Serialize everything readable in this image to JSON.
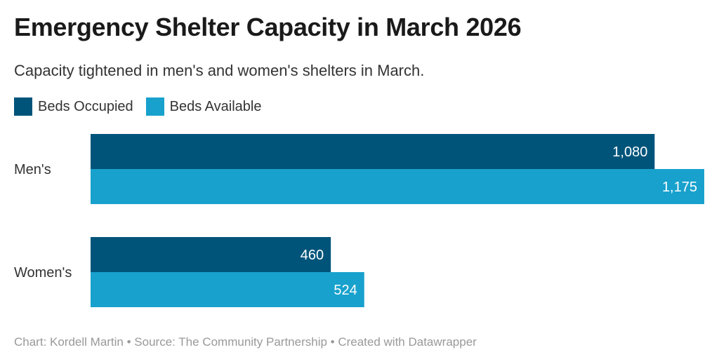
{
  "title": "Emergency Shelter Capacity in March 2026",
  "subtitle": "Capacity tightened in men's and women's shelters in March.",
  "footer": "Chart: Kordell Martin • Source: The Community Partnership • Created with Datawrapper",
  "colors": {
    "occupied": "#00547a",
    "available": "#18a1cd",
    "value_label": "#ffffff"
  },
  "chart_data": {
    "type": "bar",
    "orientation": "horizontal",
    "categories": [
      "Men's",
      "Women's"
    ],
    "series": [
      {
        "name": "Beds Occupied",
        "values": [
          1080,
          460
        ],
        "labels": [
          "1,080",
          "460"
        ]
      },
      {
        "name": "Beds Available",
        "values": [
          1175,
          524
        ],
        "labels": [
          "1,175",
          "524"
        ]
      }
    ],
    "xlim": [
      0,
      1175
    ],
    "grid": false,
    "legend": "top-left"
  }
}
